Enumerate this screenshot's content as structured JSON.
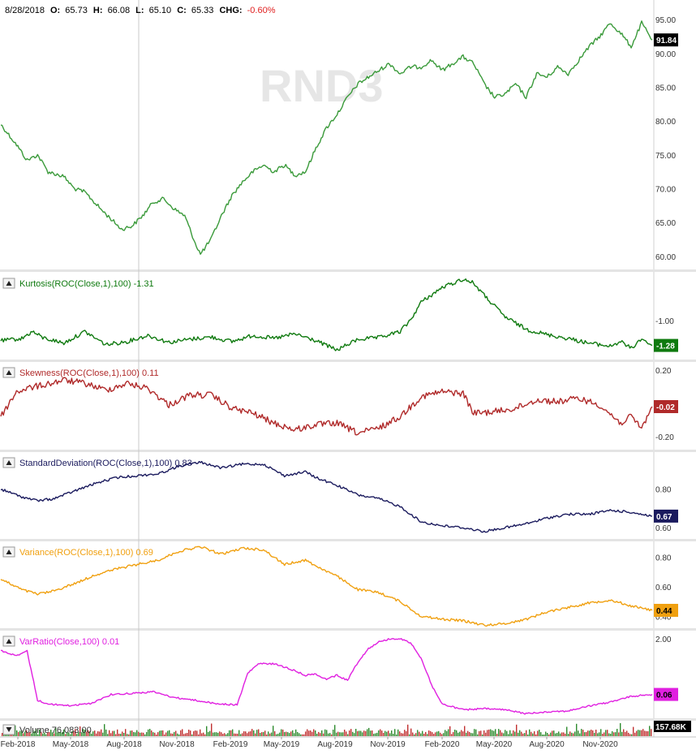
{
  "watermark": "RND3",
  "header": {
    "date": "8/28/2018",
    "open_label": "O:",
    "open": "65.73",
    "high_label": "H:",
    "high": "66.08",
    "low_label": "L:",
    "low": "65.10",
    "close_label": "C:",
    "close": "65.33",
    "chg_label": "CHG:",
    "chg": "-0.60%"
  },
  "colors": {
    "price": "#3a9a3a",
    "kurtosis": "#0f7a0f",
    "skewness": "#b02a2a",
    "stddev": "#1b1b5e",
    "variance": "#f0a010",
    "varratio": "#e020e0",
    "volume_up": "#2e8b2e",
    "volume_down": "#c03030",
    "crosshair": "#c8c8c8",
    "separator": "#c0c0c0",
    "axis_text": "#333333"
  },
  "x_axis": {
    "labels": [
      "Feb-2018",
      "May-2018",
      "Aug-2018",
      "Nov-2018",
      "Feb-2019",
      "May-2019",
      "Aug-2019",
      "Nov-2019",
      "Feb-2020",
      "May-2020",
      "Aug-2020",
      "Nov-2020"
    ]
  },
  "chart_data": [
    {
      "type": "line",
      "name": "price",
      "yticks": [
        "95.00",
        "90.00",
        "85.00",
        "80.00",
        "75.00",
        "70.00",
        "65.00",
        "60.00"
      ],
      "ylim": [
        59.5,
        95.5
      ],
      "last_value": "91.84",
      "anchors": [
        [
          0,
          79.5
        ],
        [
          3,
          76.5
        ],
        [
          5,
          74.2
        ],
        [
          7,
          75
        ],
        [
          9,
          72.5
        ],
        [
          12,
          71.8
        ],
        [
          14,
          70
        ],
        [
          16,
          69.5
        ],
        [
          19,
          67
        ],
        [
          21,
          65.5
        ],
        [
          23,
          64
        ],
        [
          25,
          64.5
        ],
        [
          27,
          66
        ],
        [
          29,
          68
        ],
        [
          31,
          68.5
        ],
        [
          33,
          67
        ],
        [
          35,
          66
        ],
        [
          37,
          62
        ],
        [
          38,
          60.3
        ],
        [
          40,
          62.5
        ],
        [
          42,
          66
        ],
        [
          44,
          69
        ],
        [
          46,
          71
        ],
        [
          48,
          72.5
        ],
        [
          50,
          73.5
        ],
        [
          52,
          72.5
        ],
        [
          54,
          73.5
        ],
        [
          56,
          72
        ],
        [
          58,
          72.5
        ],
        [
          60,
          76
        ],
        [
          62,
          79
        ],
        [
          64,
          81
        ],
        [
          66,
          83.5
        ],
        [
          68,
          85.5
        ],
        [
          70,
          86.5
        ],
        [
          72,
          87.5
        ],
        [
          74,
          88.5
        ],
        [
          76,
          87
        ],
        [
          78,
          88
        ],
        [
          80,
          88
        ],
        [
          82,
          89
        ],
        [
          84,
          87.5
        ],
        [
          86,
          88.5
        ],
        [
          88,
          89.5
        ],
        [
          90,
          88.5
        ],
        [
          92,
          85.5
        ],
        [
          94,
          83.5
        ],
        [
          96,
          84
        ],
        [
          98,
          85.5
        ],
        [
          100,
          83.5
        ],
        [
          102,
          87
        ],
        [
          104,
          86.5
        ],
        [
          106,
          88
        ],
        [
          108,
          87
        ],
        [
          110,
          89
        ],
        [
          112,
          91
        ],
        [
          114,
          92.5
        ],
        [
          116,
          94.5
        ],
        [
          118,
          93
        ],
        [
          120,
          91
        ],
        [
          122,
          94.5
        ],
        [
          124,
          92
        ]
      ]
    },
    {
      "type": "line",
      "name": "kurtosis",
      "label": "Kurtosis(ROC(Close,1),100) -1.31",
      "yticks": [
        "-1.00"
      ],
      "last_value": "-1.28",
      "anchors": [
        [
          0,
          0.18
        ],
        [
          4,
          0.21
        ],
        [
          6,
          0.3
        ],
        [
          8,
          0.22
        ],
        [
          12,
          0.15
        ],
        [
          16,
          0.3
        ],
        [
          20,
          0.13
        ],
        [
          24,
          0.17
        ],
        [
          28,
          0.25
        ],
        [
          32,
          0.16
        ],
        [
          36,
          0.2
        ],
        [
          40,
          0.23
        ],
        [
          44,
          0.17
        ],
        [
          48,
          0.25
        ],
        [
          52,
          0.21
        ],
        [
          56,
          0.27
        ],
        [
          60,
          0.18
        ],
        [
          64,
          0.06
        ],
        [
          68,
          0.2
        ],
        [
          72,
          0.22
        ],
        [
          76,
          0.3
        ],
        [
          78,
          0.45
        ],
        [
          80,
          0.68
        ],
        [
          84,
          0.87
        ],
        [
          88,
          0.98
        ],
        [
          90,
          0.93
        ],
        [
          92,
          0.77
        ],
        [
          96,
          0.49
        ],
        [
          100,
          0.33
        ],
        [
          104,
          0.26
        ],
        [
          108,
          0.21
        ],
        [
          112,
          0.15
        ],
        [
          116,
          0.11
        ],
        [
          118,
          0.17
        ],
        [
          120,
          0.08
        ],
        [
          122,
          0.21
        ],
        [
          124,
          0.12
        ]
      ]
    },
    {
      "type": "line",
      "name": "skewness",
      "label": "Skewness(ROC(Close,1),100) 0.11",
      "yticks": [
        "0.20",
        "-0.20"
      ],
      "ylim": [
        -0.26,
        0.22
      ],
      "last_value": "-0.02",
      "anchors": [
        [
          0,
          -0.08
        ],
        [
          3,
          0.07
        ],
        [
          5,
          0.09
        ],
        [
          8,
          0.11
        ],
        [
          12,
          0.14
        ],
        [
          16,
          0.12
        ],
        [
          20,
          0.08
        ],
        [
          24,
          0.12
        ],
        [
          28,
          0.09
        ],
        [
          32,
          -0.01
        ],
        [
          36,
          0.05
        ],
        [
          40,
          0.05
        ],
        [
          44,
          -0.03
        ],
        [
          48,
          -0.06
        ],
        [
          52,
          -0.12
        ],
        [
          56,
          -0.16
        ],
        [
          60,
          -0.13
        ],
        [
          64,
          -0.12
        ],
        [
          68,
          -0.18
        ],
        [
          72,
          -0.15
        ],
        [
          76,
          -0.08
        ],
        [
          80,
          0.04
        ],
        [
          84,
          0.07
        ],
        [
          88,
          0.06
        ],
        [
          90,
          -0.06
        ],
        [
          94,
          -0.05
        ],
        [
          98,
          -0.03
        ],
        [
          102,
          0.02
        ],
        [
          106,
          0.01
        ],
        [
          110,
          0.03
        ],
        [
          114,
          -0.01
        ],
        [
          118,
          -0.12
        ],
        [
          120,
          -0.08
        ],
        [
          122,
          -0.15
        ],
        [
          124,
          -0.02
        ]
      ]
    },
    {
      "type": "line",
      "name": "stddev",
      "label": "StandardDeviation(ROC(Close,1),100) 0.83",
      "yticks": [
        "0.80",
        "0.60"
      ],
      "ylim": [
        0.55,
        0.98
      ],
      "last_value": "0.67",
      "anchors": [
        [
          0,
          0.8
        ],
        [
          4,
          0.76
        ],
        [
          7,
          0.74
        ],
        [
          10,
          0.75
        ],
        [
          14,
          0.79
        ],
        [
          18,
          0.83
        ],
        [
          22,
          0.86
        ],
        [
          26,
          0.87
        ],
        [
          30,
          0.88
        ],
        [
          34,
          0.92
        ],
        [
          38,
          0.94
        ],
        [
          42,
          0.91
        ],
        [
          46,
          0.93
        ],
        [
          50,
          0.93
        ],
        [
          54,
          0.87
        ],
        [
          58,
          0.89
        ],
        [
          60,
          0.86
        ],
        [
          64,
          0.82
        ],
        [
          68,
          0.77
        ],
        [
          72,
          0.75
        ],
        [
          76,
          0.71
        ],
        [
          80,
          0.63
        ],
        [
          84,
          0.61
        ],
        [
          88,
          0.6
        ],
        [
          92,
          0.58
        ],
        [
          96,
          0.6
        ],
        [
          100,
          0.62
        ],
        [
          104,
          0.65
        ],
        [
          108,
          0.67
        ],
        [
          112,
          0.67
        ],
        [
          116,
          0.69
        ],
        [
          120,
          0.68
        ],
        [
          124,
          0.66
        ]
      ]
    },
    {
      "type": "line",
      "name": "variance",
      "label": "Variance(ROC(Close,1),100) 0.69",
      "yticks": [
        "0.80",
        "0.60",
        "0.40"
      ],
      "ylim": [
        0.33,
        0.89
      ],
      "last_value": "0.44",
      "anchors": [
        [
          0,
          0.65
        ],
        [
          4,
          0.58
        ],
        [
          7,
          0.55
        ],
        [
          10,
          0.57
        ],
        [
          14,
          0.62
        ],
        [
          18,
          0.68
        ],
        [
          22,
          0.72
        ],
        [
          26,
          0.75
        ],
        [
          30,
          0.78
        ],
        [
          34,
          0.84
        ],
        [
          38,
          0.87
        ],
        [
          42,
          0.82
        ],
        [
          46,
          0.86
        ],
        [
          50,
          0.85
        ],
        [
          54,
          0.75
        ],
        [
          58,
          0.78
        ],
        [
          60,
          0.74
        ],
        [
          64,
          0.67
        ],
        [
          68,
          0.58
        ],
        [
          72,
          0.56
        ],
        [
          76,
          0.5
        ],
        [
          80,
          0.4
        ],
        [
          84,
          0.38
        ],
        [
          88,
          0.37
        ],
        [
          92,
          0.34
        ],
        [
          96,
          0.35
        ],
        [
          100,
          0.38
        ],
        [
          104,
          0.43
        ],
        [
          108,
          0.46
        ],
        [
          112,
          0.49
        ],
        [
          116,
          0.51
        ],
        [
          120,
          0.47
        ],
        [
          124,
          0.44
        ]
      ]
    },
    {
      "type": "line",
      "name": "varratio",
      "label": "VarRatio(Close,100) 0.01",
      "yticks": [
        "2.00"
      ],
      "ylim": [
        -0.05,
        2.15
      ],
      "last_value": "0.06",
      "anchors": [
        [
          0,
          1.7
        ],
        [
          3,
          1.55
        ],
        [
          5,
          1.68
        ],
        [
          7,
          0.4
        ],
        [
          9,
          0.3
        ],
        [
          13,
          0.26
        ],
        [
          17,
          0.31
        ],
        [
          21,
          0.55
        ],
        [
          25,
          0.58
        ],
        [
          29,
          0.62
        ],
        [
          33,
          0.47
        ],
        [
          37,
          0.4
        ],
        [
          41,
          0.31
        ],
        [
          45,
          0.28
        ],
        [
          47,
          1.1
        ],
        [
          49,
          1.35
        ],
        [
          52,
          1.35
        ],
        [
          55,
          1.22
        ],
        [
          58,
          1.05
        ],
        [
          60,
          1.08
        ],
        [
          62,
          0.95
        ],
        [
          64,
          1.05
        ],
        [
          66,
          0.92
        ],
        [
          68,
          1.4
        ],
        [
          70,
          1.75
        ],
        [
          72,
          1.92
        ],
        [
          74,
          2.0
        ],
        [
          76,
          2.0
        ],
        [
          78,
          1.9
        ],
        [
          80,
          1.5
        ],
        [
          82,
          0.8
        ],
        [
          84,
          0.3
        ],
        [
          88,
          0.15
        ],
        [
          92,
          0.18
        ],
        [
          96,
          0.15
        ],
        [
          100,
          0.05
        ],
        [
          104,
          0.1
        ],
        [
          108,
          0.12
        ],
        [
          112,
          0.25
        ],
        [
          116,
          0.35
        ],
        [
          120,
          0.5
        ],
        [
          124,
          0.55
        ]
      ]
    },
    {
      "type": "bar",
      "name": "volume",
      "label": "Volume 76,083.00",
      "last_value": "157.68K"
    }
  ]
}
